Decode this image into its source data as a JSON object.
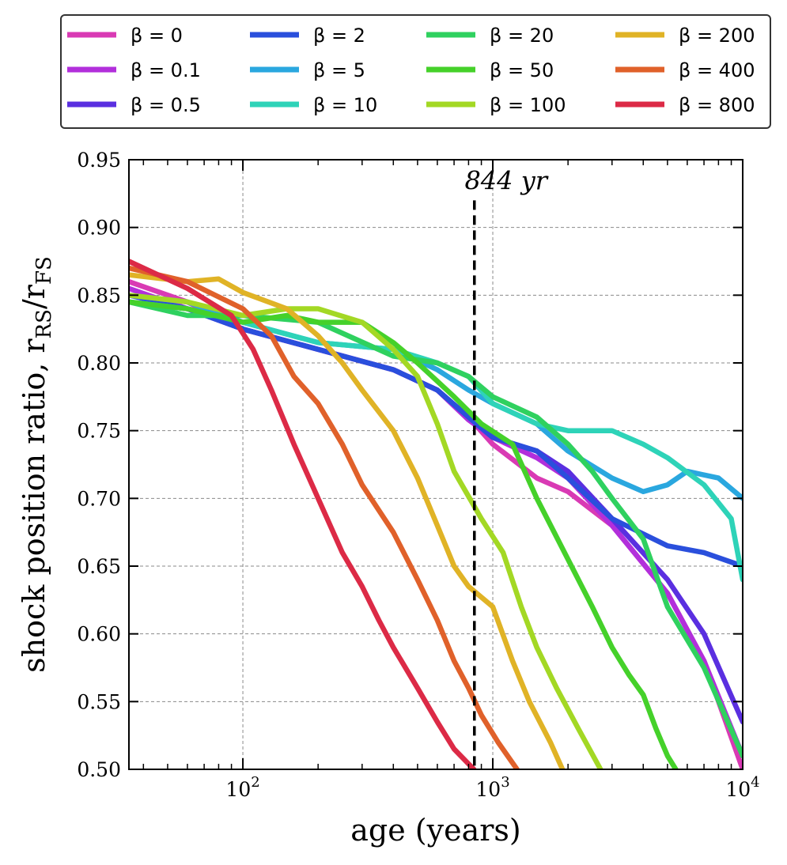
{
  "chart_data": {
    "type": "line",
    "xlabel": "age (years)",
    "ylabel_main": "shock position ratio, r",
    "ylabel_sub1": "RS",
    "ylabel_mid": "/r",
    "ylabel_sub2": "FS",
    "xscale": "log",
    "xlim": [
      35,
      10000
    ],
    "ylim": [
      0.5,
      0.95
    ],
    "grid": true,
    "legend_placement": "top, outside plot",
    "xticks": [
      {
        "value": 100,
        "base": "10",
        "exp": "2"
      },
      {
        "value": 1000,
        "base": "10",
        "exp": "3"
      },
      {
        "value": 10000,
        "base": "10",
        "exp": "4"
      }
    ],
    "yticks": [
      "0.50",
      "0.55",
      "0.60",
      "0.65",
      "0.70",
      "0.75",
      "0.80",
      "0.85",
      "0.90",
      "0.95"
    ],
    "annotation": {
      "text": "844 yr",
      "x": 844,
      "y_from": 0.5,
      "y_to": 0.92
    },
    "series": [
      {
        "name": "β = 0",
        "color": "#d93ab4",
        "points": [
          [
            35,
            0.86
          ],
          [
            60,
            0.845
          ],
          [
            100,
            0.825
          ],
          [
            200,
            0.81
          ],
          [
            400,
            0.795
          ],
          [
            600,
            0.78
          ],
          [
            800,
            0.76
          ],
          [
            1000,
            0.74
          ],
          [
            1500,
            0.715
          ],
          [
            2000,
            0.705
          ],
          [
            3000,
            0.68
          ],
          [
            5000,
            0.63
          ],
          [
            7000,
            0.58
          ],
          [
            10000,
            0.5
          ]
        ]
      },
      {
        "name": "β = 0.1",
        "color": "#b22fdb",
        "points": [
          [
            35,
            0.855
          ],
          [
            60,
            0.84
          ],
          [
            100,
            0.825
          ],
          [
            200,
            0.81
          ],
          [
            400,
            0.795
          ],
          [
            600,
            0.78
          ],
          [
            800,
            0.758
          ],
          [
            1000,
            0.745
          ],
          [
            1500,
            0.73
          ],
          [
            2000,
            0.715
          ],
          [
            3000,
            0.68
          ],
          [
            5000,
            0.63
          ],
          [
            7000,
            0.58
          ],
          [
            10000,
            0.51
          ]
        ]
      },
      {
        "name": "β = 0.5",
        "color": "#5a2fe0",
        "points": [
          [
            35,
            0.845
          ],
          [
            60,
            0.84
          ],
          [
            100,
            0.825
          ],
          [
            200,
            0.81
          ],
          [
            400,
            0.795
          ],
          [
            600,
            0.78
          ],
          [
            800,
            0.76
          ],
          [
            1000,
            0.745
          ],
          [
            1500,
            0.735
          ],
          [
            2000,
            0.72
          ],
          [
            3000,
            0.685
          ],
          [
            5000,
            0.64
          ],
          [
            7000,
            0.6
          ],
          [
            10000,
            0.535
          ]
        ]
      },
      {
        "name": "β = 2",
        "color": "#2a4fdc",
        "points": [
          [
            35,
            0.85
          ],
          [
            60,
            0.84
          ],
          [
            100,
            0.825
          ],
          [
            200,
            0.81
          ],
          [
            400,
            0.795
          ],
          [
            600,
            0.78
          ],
          [
            800,
            0.76
          ],
          [
            1000,
            0.745
          ],
          [
            1500,
            0.735
          ],
          [
            2000,
            0.715
          ],
          [
            3000,
            0.685
          ],
          [
            5000,
            0.665
          ],
          [
            7000,
            0.66
          ],
          [
            10000,
            0.65
          ]
        ]
      },
      {
        "name": "β = 5",
        "color": "#2aa7df",
        "points": [
          [
            35,
            0.85
          ],
          [
            60,
            0.845
          ],
          [
            100,
            0.83
          ],
          [
            200,
            0.815
          ],
          [
            400,
            0.81
          ],
          [
            600,
            0.795
          ],
          [
            800,
            0.78
          ],
          [
            1000,
            0.77
          ],
          [
            1500,
            0.755
          ],
          [
            2000,
            0.735
          ],
          [
            3000,
            0.715
          ],
          [
            4000,
            0.705
          ],
          [
            5000,
            0.71
          ],
          [
            6000,
            0.72
          ],
          [
            8000,
            0.715
          ],
          [
            10000,
            0.7
          ]
        ]
      },
      {
        "name": "β = 10",
        "color": "#2ed3b8",
        "points": [
          [
            35,
            0.845
          ],
          [
            60,
            0.84
          ],
          [
            100,
            0.83
          ],
          [
            200,
            0.815
          ],
          [
            400,
            0.81
          ],
          [
            600,
            0.8
          ],
          [
            800,
            0.79
          ],
          [
            1000,
            0.77
          ],
          [
            1500,
            0.755
          ],
          [
            2000,
            0.75
          ],
          [
            3000,
            0.75
          ],
          [
            4000,
            0.74
          ],
          [
            5000,
            0.73
          ],
          [
            7000,
            0.71
          ],
          [
            9000,
            0.685
          ],
          [
            10000,
            0.64
          ]
        ]
      },
      {
        "name": "β = 20",
        "color": "#2fd15f",
        "points": [
          [
            35,
            0.845
          ],
          [
            60,
            0.835
          ],
          [
            100,
            0.835
          ],
          [
            200,
            0.83
          ],
          [
            400,
            0.805
          ],
          [
            600,
            0.8
          ],
          [
            800,
            0.79
          ],
          [
            1000,
            0.775
          ],
          [
            1500,
            0.76
          ],
          [
            2000,
            0.74
          ],
          [
            2500,
            0.72
          ],
          [
            3000,
            0.7
          ],
          [
            4000,
            0.67
          ],
          [
            5000,
            0.62
          ],
          [
            7000,
            0.575
          ],
          [
            10000,
            0.51
          ]
        ]
      },
      {
        "name": "β = 50",
        "color": "#45d12a",
        "points": [
          [
            35,
            0.845
          ],
          [
            60,
            0.84
          ],
          [
            100,
            0.83
          ],
          [
            150,
            0.835
          ],
          [
            200,
            0.83
          ],
          [
            300,
            0.83
          ],
          [
            400,
            0.815
          ],
          [
            500,
            0.8
          ],
          [
            700,
            0.775
          ],
          [
            900,
            0.755
          ],
          [
            1200,
            0.74
          ],
          [
            1500,
            0.7
          ],
          [
            2000,
            0.655
          ],
          [
            2500,
            0.62
          ],
          [
            3000,
            0.59
          ],
          [
            3500,
            0.57
          ],
          [
            4000,
            0.555
          ],
          [
            4500,
            0.53
          ],
          [
            5000,
            0.51
          ],
          [
            5400,
            0.5
          ]
        ]
      },
      {
        "name": "β = 100",
        "color": "#a3d824",
        "points": [
          [
            35,
            0.85
          ],
          [
            60,
            0.845
          ],
          [
            100,
            0.835
          ],
          [
            150,
            0.84
          ],
          [
            200,
            0.84
          ],
          [
            300,
            0.83
          ],
          [
            400,
            0.81
          ],
          [
            500,
            0.79
          ],
          [
            600,
            0.755
          ],
          [
            700,
            0.72
          ],
          [
            900,
            0.685
          ],
          [
            1100,
            0.66
          ],
          [
            1300,
            0.62
          ],
          [
            1500,
            0.59
          ],
          [
            1800,
            0.56
          ],
          [
            2200,
            0.53
          ],
          [
            2700,
            0.5
          ]
        ]
      },
      {
        "name": "β = 200",
        "color": "#e0b326",
        "points": [
          [
            35,
            0.865
          ],
          [
            60,
            0.86
          ],
          [
            80,
            0.862
          ],
          [
            100,
            0.852
          ],
          [
            150,
            0.84
          ],
          [
            200,
            0.82
          ],
          [
            250,
            0.8
          ],
          [
            300,
            0.78
          ],
          [
            400,
            0.75
          ],
          [
            500,
            0.715
          ],
          [
            600,
            0.68
          ],
          [
            700,
            0.65
          ],
          [
            800,
            0.635
          ],
          [
            1000,
            0.62
          ],
          [
            1200,
            0.58
          ],
          [
            1400,
            0.55
          ],
          [
            1700,
            0.52
          ],
          [
            1900,
            0.5
          ]
        ]
      },
      {
        "name": "β = 400",
        "color": "#e0612a",
        "points": [
          [
            35,
            0.87
          ],
          [
            60,
            0.86
          ],
          [
            100,
            0.84
          ],
          [
            130,
            0.82
          ],
          [
            160,
            0.79
          ],
          [
            200,
            0.77
          ],
          [
            250,
            0.74
          ],
          [
            300,
            0.71
          ],
          [
            400,
            0.675
          ],
          [
            500,
            0.64
          ],
          [
            600,
            0.61
          ],
          [
            700,
            0.58
          ],
          [
            800,
            0.56
          ],
          [
            900,
            0.54
          ],
          [
            1050,
            0.52
          ],
          [
            1250,
            0.5
          ]
        ]
      },
      {
        "name": "β = 800",
        "color": "#dc2a46",
        "points": [
          [
            35,
            0.875
          ],
          [
            60,
            0.855
          ],
          [
            90,
            0.835
          ],
          [
            110,
            0.81
          ],
          [
            130,
            0.78
          ],
          [
            160,
            0.74
          ],
          [
            200,
            0.7
          ],
          [
            250,
            0.66
          ],
          [
            300,
            0.635
          ],
          [
            350,
            0.61
          ],
          [
            400,
            0.59
          ],
          [
            500,
            0.56
          ],
          [
            600,
            0.535
          ],
          [
            700,
            0.515
          ],
          [
            840,
            0.5
          ]
        ]
      }
    ]
  }
}
